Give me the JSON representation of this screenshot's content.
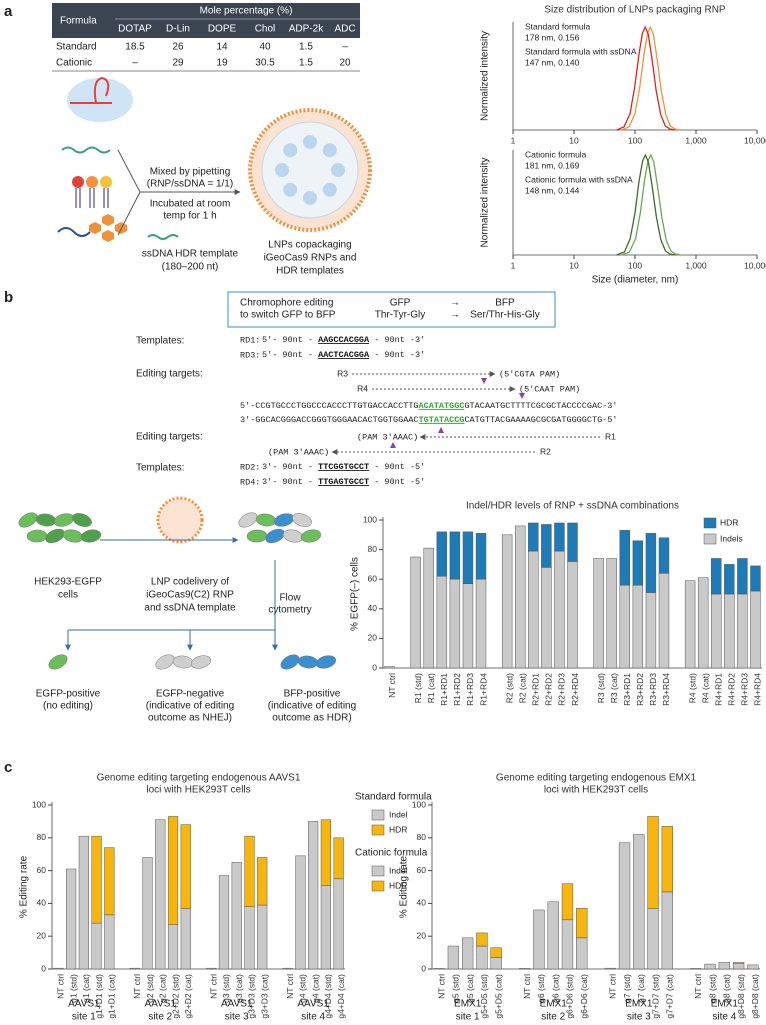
{
  "panel_labels": [
    "a",
    "b",
    "c"
  ],
  "table": {
    "header": [
      "Formula",
      "Mole percentage (%)"
    ],
    "columns": [
      "DOTAP",
      "D-Lin",
      "DOPE",
      "Chol",
      "ADP-2k",
      "ADC"
    ],
    "rows": [
      [
        "Standard",
        "18.5",
        "26",
        "14",
        "40",
        "1.5",
        "–"
      ],
      [
        "Cationic",
        "–",
        "29",
        "19",
        "30.5",
        "1.5",
        "20"
      ]
    ]
  },
  "lnp_prep": {
    "steps": [
      "Mixed by pipetting",
      "(RNP/ssDNA = 1/1)",
      "Incubated at room",
      "temp for 1 h"
    ],
    "template": [
      "ssDNA HDR template",
      "(180–200 nt)"
    ],
    "product": [
      "LNPs copackaging",
      "iGeoCas9 RNPs and",
      "HDR templates"
    ]
  },
  "editing_scheme": {
    "box": {
      "title": [
        "Chromophore editing",
        "to switch GFP to BFP"
      ],
      "from": [
        "GFP",
        "Thr-Tyr-Gly"
      ],
      "arrow": "→",
      "to": [
        "BFP",
        "Ser/Thr-His-Gly"
      ]
    },
    "templates_label": "Templates:",
    "targets_label": "Editing targets:",
    "templates_top": [
      {
        "name": "RD1:",
        "left": "5′- 90nt - ",
        "seq": "AAGCCACGGA",
        "right": " - 90nt -3′"
      },
      {
        "name": "RD3:",
        "left": "5′- 90nt - ",
        "seq": "AACTCACGGA",
        "right": " - 90nt -3′"
      }
    ],
    "targets_top": [
      {
        "name": "R3",
        "pam": "(5′CGTA PAM)"
      },
      {
        "name": "R4",
        "pam": "(5′CAAT PAM)"
      }
    ],
    "sequence": [
      {
        "left": "5′-CCGTGCCCTGGCCCACCCTTGTGACCACCTTG",
        "core": "ACATATGGC",
        "right": "GTACAATGCTTTTCGCGCTACCCCGAC-3′"
      },
      {
        "left": "3′-GGCACGGGACCGGGTGGGAACACTGGTGGAAC",
        "core": "TGTATACCG",
        "right": "CATGTTACGAAAAGCGCGATGGGGCTG-5′"
      }
    ],
    "targets_bottom": [
      {
        "pam": "(PAM 3′AAAC)",
        "name": "R1"
      },
      {
        "pam": "(PAM 3′AAAC)",
        "name": "R2"
      }
    ],
    "templates_bottom": [
      {
        "name": "RD2:",
        "left": "3′- 90nt - ",
        "seq": "TTCGGTGCCT",
        "right": " - 90nt -5′"
      },
      {
        "name": "RD4:",
        "left": "3′- 90nt - ",
        "seq": "TTGAGTGCCT",
        "right": " - 90nt -5′"
      }
    ]
  },
  "workflow": {
    "cells": [
      "HEK293-EGFP",
      "cells"
    ],
    "delivery": [
      "LNP codelivery of",
      "iGeoCas9(C2) RNP",
      "and ssDNA template"
    ],
    "flow": [
      "Flow",
      "cytometry"
    ],
    "outcomes": [
      [
        "EGFP-positive",
        "(no editing)"
      ],
      [
        "EGFP-negative",
        "(indicative of editing",
        "outcome as NHEJ)"
      ],
      [
        "BFP-positive",
        "(indicative of editing",
        "outcome as HDR)"
      ]
    ]
  },
  "legend_c": [
    "Standard formula",
    "Cationic formula"
  ],
  "chart_data": [
    {
      "type": "line",
      "title": "Size distribution of LNPs packaging RNP",
      "ylabel": "Normalized intensity",
      "xscale": "log",
      "xlim": [
        1,
        10000
      ],
      "ylim": [
        0,
        1.05
      ],
      "xticks": [
        1,
        10,
        100,
        {
          "value": 1000,
          "label": "1,000"
        },
        {
          "value": 10000,
          "label": "10,000"
        }
      ],
      "series": [
        {
          "name": "Standard formula",
          "label": "178 nm, 0.156",
          "color": "#f0923c",
          "x": [
            60,
            80,
            100,
            120,
            140,
            160,
            178,
            200,
            230,
            270,
            320,
            380,
            450,
            550
          ],
          "values": [
            0,
            0.03,
            0.16,
            0.42,
            0.73,
            0.94,
            1,
            0.93,
            0.69,
            0.38,
            0.15,
            0.04,
            0.01,
            0
          ]
        },
        {
          "name": "Standard formula with ssDNA",
          "label": "147 nm, 0.140",
          "color": "#d7261e",
          "x": [
            50,
            66,
            83,
            99,
            116,
            132,
            147,
            165,
            190,
            223,
            264,
            314,
            372,
            454
          ],
          "values": [
            0,
            0.03,
            0.16,
            0.42,
            0.73,
            0.94,
            1,
            0.93,
            0.69,
            0.38,
            0.15,
            0.04,
            0.01,
            0
          ]
        }
      ]
    },
    {
      "type": "line",
      "ylabel": "Normalized intensity",
      "xlabel": "Size (diameter, nm)",
      "xscale": "log",
      "xlim": [
        1,
        10000
      ],
      "ylim": [
        0,
        1.05
      ],
      "xticks": [
        1,
        10,
        100,
        {
          "value": 1000,
          "label": "1,000"
        },
        {
          "value": 10000,
          "label": "10,000"
        }
      ],
      "series": [
        {
          "name": "Cationic formula",
          "label": "181 nm, 0.169",
          "color": "#6aa84f",
          "x": [
            61,
            81,
            102,
            122,
            142,
            163,
            181,
            203,
            234,
            275,
            325,
            386,
            458,
            559
          ],
          "values": [
            0,
            0.03,
            0.16,
            0.42,
            0.73,
            0.94,
            1,
            0.93,
            0.69,
            0.38,
            0.15,
            0.04,
            0.01,
            0
          ]
        },
        {
          "name": "Cationic formula with ssDNA",
          "label": "148 nm, 0.144",
          "color": "#3f6b2d",
          "x": [
            50,
            67,
            83,
            100,
            116,
            133,
            148,
            166,
            191,
            224,
            266,
            316,
            374,
            457
          ],
          "values": [
            0,
            0.03,
            0.16,
            0.42,
            0.73,
            0.94,
            1,
            0.93,
            0.69,
            0.38,
            0.15,
            0.04,
            0.01,
            0
          ]
        }
      ]
    },
    {
      "type": "bar",
      "title": "Indel/HDR levels of RNP + ssDNA combinations",
      "ylabel": "% EGFP(–) cells",
      "ylim": [
        0,
        100
      ],
      "yticks": [
        0,
        20,
        40,
        60,
        80,
        100
      ],
      "legend": "top-right",
      "categories": [
        "NT ctrl",
        null,
        "R1 (std)",
        "R1 (cat)",
        "R1+RD1",
        "R1+RD2",
        "R1+RD3",
        "R1+RD4",
        null,
        "R2 (std)",
        "R2 (cat)",
        "R2+RD1",
        "R2+RD2",
        "R2+RD3",
        "R2+RD4",
        null,
        "R3 (std)",
        "R3 (cat)",
        "R3+RD1",
        "R3+RD2",
        "R3+RD3",
        "R3+RD4",
        null,
        "R4 (std)",
        "R4 (cat)",
        "R4+RD1",
        "R4+RD2",
        "R4+RD3",
        "R4+RD4"
      ],
      "series": [
        {
          "name": "Indels",
          "color": "#c9c9c9",
          "values": [
            1,
            null,
            75,
            81,
            62,
            60,
            57,
            60,
            null,
            90,
            96,
            79,
            68,
            79,
            72,
            null,
            74,
            74,
            56,
            56,
            51,
            64,
            null,
            59,
            61,
            50,
            50,
            50,
            52
          ]
        },
        {
          "name": "HDR",
          "color": "#1f7ab8",
          "values": [
            0,
            null,
            0,
            0,
            30,
            32,
            35,
            31,
            null,
            0,
            0,
            19,
            29,
            19,
            26,
            null,
            0,
            0,
            37,
            30,
            40,
            24,
            null,
            0,
            0,
            24,
            20,
            24,
            17
          ]
        }
      ]
    },
    {
      "type": "bar",
      "title": [
        "Genome editing targeting endogenous AAVS1",
        "loci with HEK293T cells"
      ],
      "ylabel": "% Editing rate",
      "ylim": [
        0,
        100
      ],
      "yticks": [
        0,
        20,
        40,
        60,
        80,
        100
      ],
      "categories": [
        "NT ctrl",
        "g1 (std)",
        "g1 (cat)",
        "g1+D1 (std)",
        "g1+D1 (cat)",
        null,
        "NT ctrl",
        "g2 (std)",
        "g2 (cat)",
        "g2+D2 (std)",
        "g2+D2 (cat)",
        null,
        "NT ctrl",
        "g3 (std)",
        "g3 (cat)",
        "g3+D3 (std)",
        "g3+D3 (cat)",
        null,
        "NT ctrl",
        "g4 (std)",
        "g4 (cat)",
        "g4+D4 (std)",
        "g4+D4 (cat)"
      ],
      "groups": [
        [
          "AAVS1",
          "site 1"
        ],
        [
          "AAVS1",
          "site 2"
        ],
        [
          "AAVS1",
          "site 3"
        ],
        [
          "AAVS1",
          "site 4"
        ]
      ],
      "series": [
        {
          "name": "Indel",
          "color": "#c9c9c9",
          "values": [
            0.5,
            61,
            81,
            28,
            33,
            null,
            0.5,
            68,
            91,
            27,
            37,
            null,
            0.5,
            57,
            65,
            38,
            39,
            null,
            0.5,
            69,
            90,
            51,
            55
          ]
        },
        {
          "name": "HDR",
          "color": "#f6b60f",
          "values": [
            0,
            0,
            0,
            53,
            41,
            null,
            0,
            0,
            0,
            66,
            51,
            null,
            0,
            0,
            0,
            43,
            29,
            null,
            0,
            0,
            0,
            40,
            25
          ]
        }
      ]
    },
    {
      "type": "bar",
      "title": [
        "Genome editing targeting endogenous EMX1",
        "loci with HEK293T cells"
      ],
      "ylabel": "% Editing rate",
      "ylim": [
        0,
        100
      ],
      "yticks": [
        0,
        20,
        40,
        60,
        80,
        100
      ],
      "categories": [
        "NT ctrl",
        "g5 (std)",
        "g5 (cat)",
        "g5+D5 (std)",
        "g5+D5 (cat)",
        null,
        "NT ctrl",
        "g6 (std)",
        "g6 (cat)",
        "g6+D6 (std)",
        "g6+D6 (cat)",
        null,
        "NT ctrl",
        "g7 (std)",
        "g7 (cat)",
        "g7+D7 (std)",
        "g7+D7 (cat)",
        null,
        "NT ctrl",
        "g8 (std)",
        "g8 (cat)",
        "g8+D8 (std)",
        "g8+D8 (cat)"
      ],
      "groups": [
        [
          "EMX1",
          "site 1"
        ],
        [
          "EMX1",
          "site 2"
        ],
        [
          "EMX1",
          "site 3"
        ],
        [
          "EMX1",
          "site 4"
        ]
      ],
      "series": [
        {
          "name": "Indel",
          "color": "#c9c9c9",
          "values": [
            0.3,
            14,
            19,
            14,
            7,
            null,
            0.3,
            36,
            41,
            30,
            19,
            null,
            0.5,
            77,
            82,
            37,
            47,
            null,
            0.3,
            3,
            4,
            3.5,
            2.5
          ]
        },
        {
          "name": "HDR",
          "color": "#f6b60f",
          "values": [
            0,
            0,
            0,
            8,
            6,
            null,
            0,
            0,
            0,
            22,
            18,
            null,
            0,
            0,
            0,
            56,
            40,
            null,
            0,
            0,
            0,
            0.5,
            0
          ]
        }
      ]
    }
  ]
}
